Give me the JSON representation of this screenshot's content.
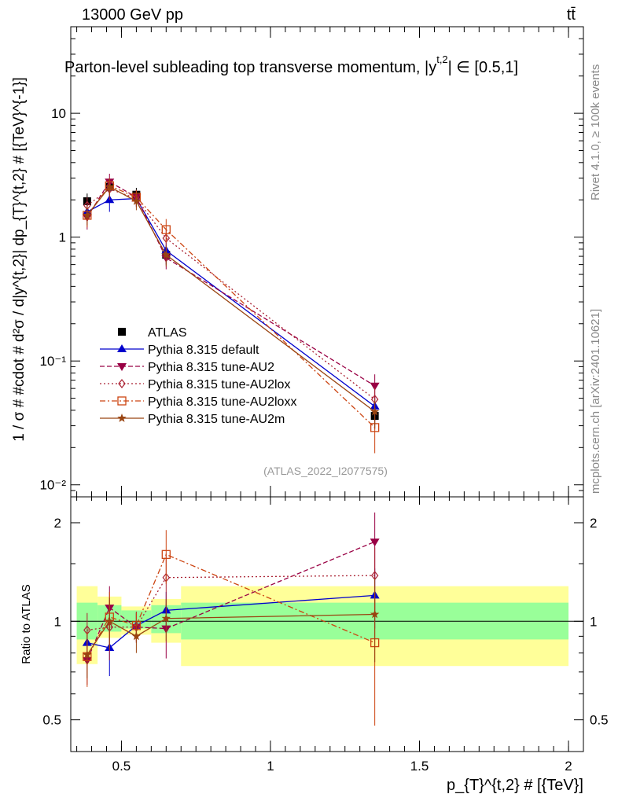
{
  "header": {
    "energy_label": "13000 GeV pp",
    "process_label": "tt̄",
    "title": "Parton-level subleading top transverse momentum, |y",
    "title_sup": "t,2",
    "title_tail": "| ∈ [0.5,1]",
    "side_rivet": "Rivet 4.1.0, ≥ 100k events",
    "side_source": "mcplots.cern.ch [arXiv:2401.10621]",
    "watermark": "(ATLAS_2022_I2077575)"
  },
  "axes": {
    "ylabel_main": "1 / σ # #cdot # d²σ / d|y^{t,2}| dp_{T}^{t,2} # [{TeV}^{-1}]",
    "ylabel_ratio": "Ratio to ATLAS",
    "xlabel": "p_{T}^{t,2} # [{TeV}]",
    "main_ticks": [
      "10⁻²",
      "10⁻¹",
      "1",
      "10"
    ],
    "ratio_ticks": [
      "0.5",
      "1",
      "2"
    ],
    "x_ticks": [
      "0.5",
      "1",
      "1.5",
      "2"
    ]
  },
  "legend": [
    {
      "label": "ATLAS"
    },
    {
      "label": "Pythia 8.315 default"
    },
    {
      "label": "Pythia 8.315 tune-AU2"
    },
    {
      "label": "Pythia 8.315 tune-AU2lox"
    },
    {
      "label": "Pythia 8.315 tune-AU2loxx"
    },
    {
      "label": "Pythia 8.315 tune-AU2m"
    }
  ],
  "chart_data": [
    {
      "type": "scatter",
      "panel": "main",
      "title": "Parton-level subleading top transverse momentum",
      "xlabel": "p_T^{t,2} [TeV]",
      "ylabel": "1/sigma d2sigma / d|y| dpT [TeV^-1]",
      "yscale": "log",
      "xlim": [
        0.33,
        2.05
      ],
      "ylim": [
        0.008,
        50
      ],
      "bins": [
        [
          0.35,
          0.42
        ],
        [
          0.42,
          0.5
        ],
        [
          0.5,
          0.6
        ],
        [
          0.6,
          0.7
        ],
        [
          0.7,
          2.0
        ]
      ],
      "x": [
        0.385,
        0.46,
        0.55,
        0.65,
        1.35
      ],
      "series": [
        {
          "name": "ATLAS",
          "color": "#000000",
          "marker": "square",
          "dash": "none",
          "values": [
            1.95,
            2.55,
            2.2,
            0.72,
            0.036
          ],
          "err": [
            0.3,
            0.35,
            0.3,
            0.12,
            0.008
          ]
        },
        {
          "name": "Pythia 8.315 default",
          "color": "#0000cc",
          "marker": "triangle-up",
          "dash": "solid",
          "values": [
            1.6,
            2.0,
            2.05,
            0.78,
            0.043
          ],
          "err": [
            0.25,
            0.4,
            0.3,
            0.15,
            0.01
          ]
        },
        {
          "name": "Pythia 8.315 tune-AU2",
          "color": "#990044",
          "marker": "triangle-down",
          "dash": "dashed",
          "values": [
            1.45,
            2.8,
            2.1,
            0.68,
            0.063
          ],
          "err": [
            0.3,
            0.45,
            0.3,
            0.13,
            0.015
          ]
        },
        {
          "name": "Pythia 8.315 tune-AU2lox",
          "color": "#aa2233",
          "marker": "diamond",
          "dash": "dotted",
          "values": [
            1.8,
            2.45,
            2.05,
            0.98,
            0.049
          ],
          "err": [
            0.3,
            0.45,
            0.3,
            0.2,
            0.012
          ]
        },
        {
          "name": "Pythia 8.315 tune-AU2loxx",
          "color": "#cc4411",
          "marker": "square-open",
          "dash": "dashdot",
          "values": [
            1.5,
            2.6,
            2.1,
            1.15,
            0.029
          ],
          "err": [
            0.3,
            0.4,
            0.3,
            0.25,
            0.011
          ]
        },
        {
          "name": "Pythia 8.315 tune-AU2m",
          "color": "#994411",
          "marker": "star",
          "dash": "solid",
          "values": [
            1.5,
            2.55,
            1.95,
            0.72,
            0.039
          ],
          "err": [
            0.25,
            0.4,
            0.3,
            0.14,
            0.01
          ]
        }
      ]
    },
    {
      "type": "scatter",
      "panel": "ratio",
      "ylabel": "Ratio to ATLAS",
      "yscale": "log",
      "ylim": [
        0.4,
        2.4
      ],
      "x": [
        0.385,
        0.46,
        0.55,
        0.65,
        1.35
      ],
      "bands": [
        {
          "x_range": [
            0.35,
            0.42
          ],
          "inner": [
            0.88,
            1.14
          ],
          "outer": [
            0.74,
            1.28
          ]
        },
        {
          "x_range": [
            0.42,
            0.5
          ],
          "inner": [
            0.93,
            1.12
          ],
          "outer": [
            0.89,
            1.19
          ]
        },
        {
          "x_range": [
            0.5,
            0.6
          ],
          "inner": [
            0.95,
            1.08
          ],
          "outer": [
            0.91,
            1.11
          ]
        },
        {
          "x_range": [
            0.6,
            0.7
          ],
          "inner": [
            0.92,
            1.12
          ],
          "outer": [
            0.86,
            1.17
          ]
        },
        {
          "x_range": [
            0.7,
            2.0
          ],
          "inner": [
            0.88,
            1.14
          ],
          "outer": [
            0.73,
            1.28
          ]
        }
      ],
      "series": [
        {
          "name": "Pythia 8.315 default",
          "values": [
            0.86,
            0.83,
            0.97,
            1.08,
            1.2
          ],
          "err": [
            0.08,
            0.15,
            0.1,
            0.15,
            0.25
          ]
        },
        {
          "name": "Pythia 8.315 tune-AU2",
          "values": [
            0.76,
            1.1,
            0.96,
            0.95,
            1.75
          ],
          "err": [
            0.12,
            0.18,
            0.1,
            0.18,
            0.4
          ]
        },
        {
          "name": "Pythia 8.315 tune-AU2lox",
          "values": [
            0.94,
            0.96,
            0.96,
            1.36,
            1.38
          ],
          "err": [
            0.12,
            0.2,
            0.1,
            0.25,
            0.3
          ]
        },
        {
          "name": "Pythia 8.315 tune-AU2loxx",
          "values": [
            0.78,
            1.03,
            0.97,
            1.6,
            0.86
          ],
          "err": [
            0.15,
            0.2,
            0.1,
            0.3,
            0.38
          ]
        },
        {
          "name": "Pythia 8.315 tune-AU2m",
          "values": [
            0.79,
            1.0,
            0.9,
            1.02,
            1.05
          ],
          "err": [
            0.12,
            0.18,
            0.1,
            0.15,
            0.3
          ]
        }
      ]
    }
  ]
}
